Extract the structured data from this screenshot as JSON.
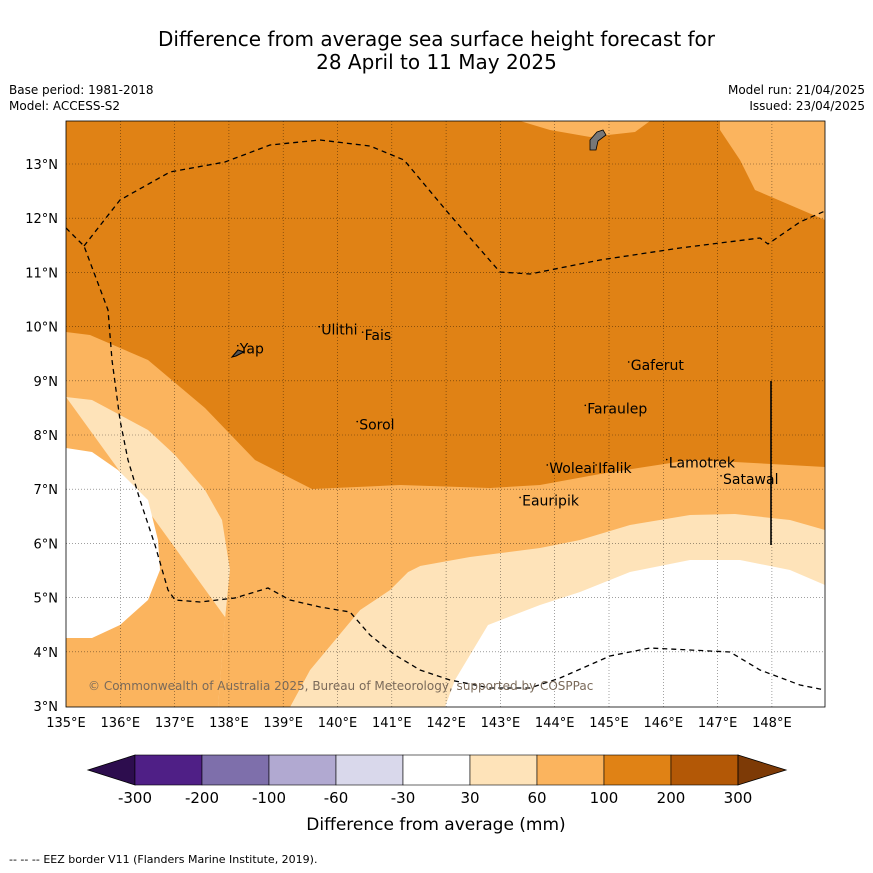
{
  "title": {
    "line1": "Difference from average sea surface height forecast for",
    "line2": "28 April to 11 May 2025"
  },
  "meta": {
    "base_period": "Base period: 1981-2018",
    "model": "Model: ACCESS-S2",
    "model_run": "Model run: 21/04/2025",
    "issued": "Issued: 23/04/2025"
  },
  "map": {
    "lon_range": [
      135,
      149
    ],
    "lat_range": [
      3,
      13.8
    ],
    "x_ticks": [
      "135°E",
      "136°E",
      "137°E",
      "138°E",
      "139°E",
      "140°E",
      "141°E",
      "142°E",
      "143°E",
      "144°E",
      "145°E",
      "146°E",
      "147°E",
      "148°E"
    ],
    "y_ticks": [
      "3°N",
      "4°N",
      "5°N",
      "6°N",
      "7°N",
      "8°N",
      "9°N",
      "10°N",
      "11°N",
      "12°N",
      "13°N"
    ],
    "places": [
      {
        "name": "Yap",
        "lon": 138.2,
        "lat": 9.5
      },
      {
        "name": "Ulithi",
        "lon": 139.7,
        "lat": 9.85
      },
      {
        "name": "Fais",
        "lon": 140.5,
        "lat": 9.75
      },
      {
        "name": "Sorol",
        "lon": 140.4,
        "lat": 8.1
      },
      {
        "name": "Gaferut",
        "lon": 145.4,
        "lat": 9.2
      },
      {
        "name": "Faraulep",
        "lon": 144.6,
        "lat": 8.4
      },
      {
        "name": "Woleai",
        "lon": 143.9,
        "lat": 7.3
      },
      {
        "name": "Ifalik",
        "lon": 144.8,
        "lat": 7.3
      },
      {
        "name": "Lamotrek",
        "lon": 146.1,
        "lat": 7.4
      },
      {
        "name": "Satawal",
        "lon": 147.1,
        "lat": 7.1
      },
      {
        "name": "Eauripik",
        "lon": 143.4,
        "lat": 6.7
      }
    ],
    "copyright": "© Commonwealth of Australia 2025, Bureau of Meteorology, supported by COSPPac"
  },
  "colorbar": {
    "labels": [
      "-300",
      "-200",
      "-100",
      "-60",
      "-30",
      "30",
      "60",
      "100",
      "200",
      "300"
    ],
    "colors": [
      "#2d0d4e",
      "#4f1f86",
      "#7e6fab",
      "#b1a9d1",
      "#d9d8eb",
      "#ffffff",
      "#fee3b9",
      "#fbb45e",
      "#e08215",
      "#b35806",
      "#7d3a06"
    ],
    "label": "Difference from average (mm)"
  },
  "footer": {
    "legend_text": "EEZ border V11 (Flanders Marine Institute, 2019)."
  }
}
